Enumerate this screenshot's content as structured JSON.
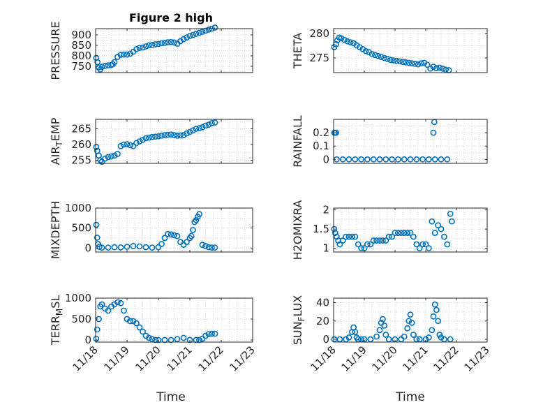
{
  "chart_data": {
    "title": "Figure 2 high",
    "type": "scatter",
    "xlabel": "Time",
    "x_range_days": [
      0,
      5
    ],
    "xticks": [
      "11/18",
      "11/19",
      "11/20",
      "11/21",
      "11/22",
      "11/23"
    ],
    "marker": "open-circle",
    "color": "#0072BD",
    "grid": "dotted-minor",
    "panels": [
      {
        "name": "pressure",
        "ylabel": "PRESSURE",
        "ylim": [
          720,
          930
        ],
        "yticks": [
          750,
          800,
          850,
          900
        ],
        "x": [
          0.02,
          0.06,
          0.1,
          0.15,
          0.2,
          0.3,
          0.4,
          0.5,
          0.55,
          0.6,
          0.7,
          0.8,
          0.9,
          1.0,
          1.1,
          1.2,
          1.3,
          1.4,
          1.5,
          1.6,
          1.7,
          1.8,
          1.9,
          2.0,
          2.1,
          2.2,
          2.3,
          2.4,
          2.5,
          2.6,
          2.7,
          2.8,
          2.9,
          3.0,
          3.1,
          3.2,
          3.3,
          3.4,
          3.5,
          3.6,
          3.7,
          3.8
        ],
        "y": [
          790,
          770,
          745,
          735,
          748,
          752,
          755,
          756,
          760,
          770,
          795,
          805,
          806,
          806,
          810,
          820,
          832,
          838,
          840,
          845,
          850,
          852,
          855,
          857,
          860,
          862,
          865,
          866,
          864,
          858,
          870,
          880,
          888,
          895,
          900,
          905,
          910,
          915,
          920,
          925,
          930,
          935
        ]
      },
      {
        "name": "theta",
        "ylabel": "THETA",
        "ylim": [
          272,
          281
        ],
        "yticks": [
          275,
          280
        ],
        "x": [
          0.02,
          0.08,
          0.12,
          0.18,
          0.25,
          0.35,
          0.45,
          0.55,
          0.65,
          0.75,
          0.85,
          0.95,
          1.05,
          1.15,
          1.25,
          1.35,
          1.45,
          1.55,
          1.65,
          1.75,
          1.85,
          1.95,
          2.05,
          2.15,
          2.25,
          2.35,
          2.45,
          2.55,
          2.65,
          2.75,
          2.85,
          2.95,
          3.05,
          3.15,
          3.25,
          3.35,
          3.45,
          3.55,
          3.65,
          3.75
        ],
        "y": [
          277.2,
          277.8,
          278.6,
          279.2,
          279.0,
          278.7,
          278.4,
          278.2,
          278.0,
          277.6,
          277.2,
          276.8,
          276.4,
          276.2,
          275.8,
          275.6,
          275.4,
          275.2,
          275.0,
          274.8,
          274.6,
          274.5,
          274.4,
          274.3,
          274.2,
          274.1,
          274.0,
          273.9,
          273.8,
          273.7,
          273.9,
          274.0,
          273.6,
          272.8,
          273.2,
          272.9,
          273.0,
          272.8,
          272.6,
          272.5
        ]
      },
      {
        "name": "air-temp",
        "ylabel": "AIR",
        "ylabel_sub": "T",
        "ylabel_tail": "EMP",
        "ylim": [
          254,
          268
        ],
        "yticks": [
          255,
          260,
          265
        ],
        "x": [
          0.02,
          0.05,
          0.1,
          0.15,
          0.2,
          0.3,
          0.4,
          0.5,
          0.6,
          0.7,
          0.8,
          0.9,
          1.0,
          1.1,
          1.2,
          1.3,
          1.4,
          1.5,
          1.6,
          1.7,
          1.8,
          1.9,
          2.0,
          2.1,
          2.2,
          2.3,
          2.4,
          2.5,
          2.6,
          2.7,
          2.8,
          2.9,
          3.0,
          3.1,
          3.2,
          3.3,
          3.4,
          3.5,
          3.6,
          3.7,
          3.8
        ],
        "y": [
          259.2,
          258,
          256.5,
          255.0,
          254.5,
          255.5,
          256.0,
          256.2,
          256.5,
          257.0,
          259.5,
          260.0,
          260.1,
          259.8,
          259.5,
          260.5,
          261.0,
          261.5,
          262.0,
          262.2,
          262.4,
          262.5,
          262.6,
          262.8,
          263.0,
          263.1,
          263.2,
          263.0,
          262.8,
          262.9,
          263.0,
          263.5,
          264.0,
          264.5,
          265.0,
          265.2,
          265.5,
          266.0,
          266.3,
          266.8,
          267.0
        ]
      },
      {
        "name": "rainfall",
        "ylabel": "RAINFALL",
        "ylim": [
          -0.03,
          0.3
        ],
        "yticks": [
          0,
          0.1,
          0.2
        ],
        "x": [
          0.02,
          0.05,
          0.08,
          0.1,
          0.3,
          0.5,
          0.7,
          0.9,
          1.1,
          1.3,
          1.5,
          1.7,
          1.9,
          2.1,
          2.3,
          2.5,
          2.7,
          2.9,
          3.1,
          3.25,
          3.28,
          3.3,
          3.5,
          3.7
        ],
        "y": [
          0.2,
          0.2,
          0.2,
          0,
          0,
          0,
          0,
          0,
          0,
          0,
          0,
          0,
          0,
          0,
          0,
          0,
          0,
          0,
          0,
          0.2,
          0.28,
          0,
          0,
          0
        ]
      },
      {
        "name": "mixdepth",
        "ylabel": "MIXDEPTH",
        "ylim": [
          -100,
          1000
        ],
        "yticks": [
          0,
          500,
          1000
        ],
        "x": [
          0.02,
          0.05,
          0.08,
          0.12,
          0.2,
          0.4,
          0.6,
          0.8,
          1.0,
          1.2,
          1.4,
          1.6,
          1.8,
          2.0,
          2.1,
          2.2,
          2.3,
          2.4,
          2.5,
          2.6,
          2.7,
          2.8,
          2.9,
          3.0,
          3.05,
          3.1,
          3.15,
          3.2,
          3.25,
          3.3,
          3.4,
          3.5,
          3.6,
          3.7,
          3.8
        ],
        "y": [
          580,
          260,
          100,
          30,
          10,
          10,
          20,
          15,
          30,
          50,
          40,
          20,
          10,
          20,
          100,
          250,
          350,
          340,
          320,
          300,
          150,
          80,
          150,
          250,
          300,
          450,
          650,
          700,
          780,
          850,
          80,
          50,
          20,
          10,
          10
        ]
      },
      {
        "name": "h2omixra",
        "ylabel": "H2OMIXRA",
        "ylim": [
          0.9,
          2.05
        ],
        "yticks": [
          1,
          1.5,
          2
        ],
        "x": [
          0.02,
          0.05,
          0.1,
          0.15,
          0.2,
          0.3,
          0.4,
          0.5,
          0.6,
          0.7,
          0.8,
          0.9,
          1.0,
          1.1,
          1.2,
          1.3,
          1.4,
          1.5,
          1.6,
          1.7,
          1.8,
          1.9,
          2.0,
          2.1,
          2.2,
          2.3,
          2.4,
          2.5,
          2.6,
          2.7,
          2.8,
          2.9,
          3.0,
          3.1,
          3.2,
          3.3,
          3.4,
          3.5,
          3.6,
          3.7,
          3.8,
          3.85
        ],
        "y": [
          1.5,
          1.4,
          1.3,
          1.2,
          1.1,
          1.2,
          1.3,
          1.3,
          1.3,
          1.3,
          1.1,
          1.0,
          1.0,
          1.1,
          1.1,
          1.2,
          1.2,
          1.2,
          1.2,
          1.2,
          1.3,
          1.3,
          1.4,
          1.4,
          1.4,
          1.4,
          1.4,
          1.4,
          1.3,
          1.1,
          1.0,
          1.1,
          1.1,
          1.0,
          1.7,
          1.4,
          1.6,
          1.5,
          1.3,
          1.1,
          1.9,
          1.7
        ]
      },
      {
        "name": "terr-msl",
        "ylabel": "TERR",
        "ylabel_sub": "M",
        "ylabel_tail": "SL",
        "ylim": [
          -50,
          1000
        ],
        "yticks": [
          0,
          500,
          1000
        ],
        "x": [
          0.02,
          0.05,
          0.1,
          0.15,
          0.2,
          0.3,
          0.4,
          0.5,
          0.6,
          0.7,
          0.8,
          0.9,
          1.0,
          1.1,
          1.2,
          1.3,
          1.4,
          1.5,
          1.6,
          1.7,
          1.8,
          1.9,
          2.0,
          2.2,
          2.4,
          2.6,
          2.8,
          3.0,
          3.2,
          3.3,
          3.4,
          3.5,
          3.6,
          3.7,
          3.8
        ],
        "y": [
          30,
          250,
          500,
          800,
          850,
          750,
          700,
          800,
          850,
          900,
          880,
          700,
          500,
          450,
          450,
          400,
          300,
          200,
          100,
          50,
          20,
          0,
          0,
          0,
          0,
          20,
          50,
          0,
          0,
          0,
          30,
          100,
          140,
          150,
          150
        ]
      },
      {
        "name": "sun-flux",
        "ylabel": "SUN",
        "ylabel_sub": "F",
        "ylabel_tail": "LUX",
        "ylim": [
          -3,
          45
        ],
        "yticks": [
          0,
          20,
          40
        ],
        "x": [
          0.02,
          0.2,
          0.4,
          0.5,
          0.6,
          0.65,
          0.7,
          0.75,
          0.8,
          0.9,
          1.0,
          1.2,
          1.4,
          1.5,
          1.55,
          1.6,
          1.65,
          1.7,
          1.8,
          2.0,
          2.2,
          2.3,
          2.4,
          2.45,
          2.5,
          2.55,
          2.6,
          2.7,
          2.8,
          3.0,
          3.1,
          3.2,
          3.25,
          3.3,
          3.35,
          3.4,
          3.45,
          3.5,
          3.6,
          3.8
        ],
        "y": [
          0,
          0,
          0,
          2,
          8,
          13,
          8,
          2,
          0,
          0,
          0,
          0,
          3,
          10,
          18,
          22,
          15,
          5,
          0,
          0,
          0,
          3,
          12,
          20,
          27,
          18,
          5,
          0,
          0,
          0,
          2,
          10,
          25,
          38,
          32,
          20,
          5,
          2,
          0,
          0
        ]
      }
    ]
  }
}
